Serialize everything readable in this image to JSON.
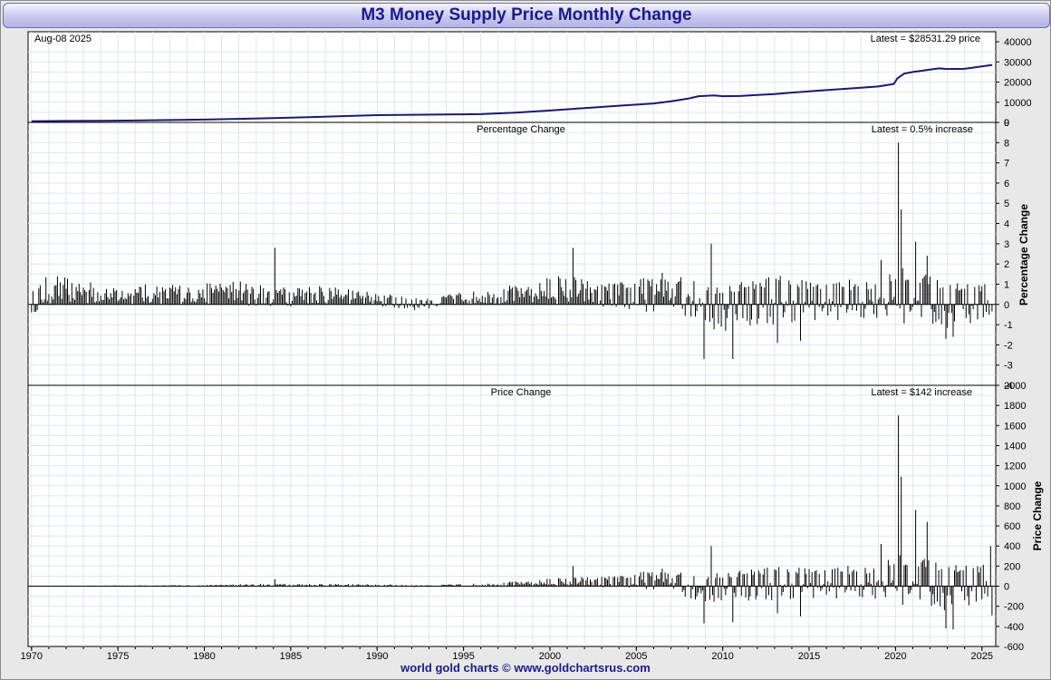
{
  "header": {
    "title": "M3 Money Supply Price Monthly Change"
  },
  "footer": {
    "text": "world gold charts © www.goldchartsrus.com"
  },
  "chart_data": [
    {
      "type": "line",
      "name": "price",
      "date_label": "Aug-08  2025",
      "latest_label": "Latest = $28531.29 price",
      "ylim": [
        0,
        45000
      ],
      "yticks": [
        0,
        10000,
        20000,
        30000,
        40000
      ],
      "xlim": [
        1969.8,
        2025.8
      ],
      "line_color": "#1a1a6e",
      "x": [
        1970,
        1972,
        1974,
        1976,
        1978,
        1980,
        1982,
        1984,
        1986,
        1988,
        1990,
        1992,
        1994,
        1996,
        1998,
        2000,
        2002,
        2004,
        2006,
        2007,
        2008,
        2008.6,
        2009.5,
        2010,
        2011,
        2012,
        2013,
        2014,
        2016,
        2018,
        2019,
        2019.9,
        2020.1,
        2020.5,
        2021,
        2022,
        2022.5,
        2023,
        2024,
        2025,
        2025.6
      ],
      "y": [
        600,
        700,
        800,
        950,
        1150,
        1400,
        1750,
        2100,
        2600,
        3100,
        3600,
        3800,
        3950,
        4100,
        4800,
        5900,
        7100,
        8300,
        9400,
        10500,
        11800,
        13000,
        13400,
        13000,
        13100,
        13600,
        14100,
        14800,
        16000,
        17200,
        17800,
        19100,
        21800,
        24200,
        25000,
        26200,
        26800,
        26500,
        26600,
        27800,
        28531
      ]
    },
    {
      "type": "bar",
      "name": "percentage",
      "subtitle": "Percentage Change",
      "latest_label": "Latest = 0.5% increase",
      "ylabel": "Percentage Change",
      "ylim": [
        -4,
        9
      ],
      "yticks": [
        -4,
        -3,
        -2,
        -1,
        0,
        1,
        2,
        3,
        4,
        5,
        6,
        7,
        8,
        9
      ],
      "xlim": [
        1969.8,
        2025.8
      ],
      "envelope": [
        {
          "year": 1970,
          "hi": 0.6,
          "lo": -0.5
        },
        {
          "year": 1971,
          "hi": 1.5,
          "lo": 0
        },
        {
          "year": 1973,
          "hi": 1.2,
          "lo": 0
        },
        {
          "year": 1975,
          "hi": 0.8,
          "lo": 0
        },
        {
          "year": 1976,
          "hi": 1.0,
          "lo": 0
        },
        {
          "year": 1979,
          "hi": 1.0,
          "lo": 0
        },
        {
          "year": 1982,
          "hi": 1.2,
          "lo": 0
        },
        {
          "year": 1984,
          "hi": 1.0,
          "lo": -0.2
        },
        {
          "year": 1986,
          "hi": 1.1,
          "lo": 0
        },
        {
          "year": 1988,
          "hi": 0.8,
          "lo": 0
        },
        {
          "year": 1990,
          "hi": 0.6,
          "lo": -0.1
        },
        {
          "year": 1991.5,
          "hi": 0.4,
          "lo": -0.3
        },
        {
          "year": 1993,
          "hi": 0.3,
          "lo": -0.3
        },
        {
          "year": 1995,
          "hi": 0.7,
          "lo": 0
        },
        {
          "year": 1997,
          "hi": 0.9,
          "lo": 0
        },
        {
          "year": 1999,
          "hi": 1.2,
          "lo": 0
        },
        {
          "year": 2001,
          "hi": 1.5,
          "lo": 0
        },
        {
          "year": 2003,
          "hi": 1.0,
          "lo": -0.1
        },
        {
          "year": 2005,
          "hi": 1.2,
          "lo": -0.4
        },
        {
          "year": 2007,
          "hi": 1.8,
          "lo": -0.3
        },
        {
          "year": 2008.5,
          "hi": 1.6,
          "lo": -0.8
        },
        {
          "year": 2009.5,
          "hi": 0.8,
          "lo": -1.5
        },
        {
          "year": 2011,
          "hi": 1.2,
          "lo": -1.2
        },
        {
          "year": 2013,
          "hi": 1.5,
          "lo": -1.0
        },
        {
          "year": 2015,
          "hi": 1.2,
          "lo": -0.8
        },
        {
          "year": 2017,
          "hi": 1.2,
          "lo": -0.8
        },
        {
          "year": 2019,
          "hi": 1.4,
          "lo": -0.8
        },
        {
          "year": 2021,
          "hi": 2.0,
          "lo": -1.0
        },
        {
          "year": 2023,
          "hi": 1.0,
          "lo": -1.2
        },
        {
          "year": 2025.6,
          "hi": 1.2,
          "lo": -0.8
        }
      ],
      "spikes": [
        {
          "x": 1984.1,
          "y": 2.8
        },
        {
          "x": 2001.3,
          "y": 2.8
        },
        {
          "x": 2008.9,
          "y": -2.7
        },
        {
          "x": 2009.3,
          "y": 3.0
        },
        {
          "x": 2010.2,
          "y": -1.3
        },
        {
          "x": 2010.6,
          "y": -2.7
        },
        {
          "x": 2013.2,
          "y": -1.9
        },
        {
          "x": 2014.5,
          "y": -1.8
        },
        {
          "x": 2019.2,
          "y": 2.2
        },
        {
          "x": 2020.2,
          "y": 8.0
        },
        {
          "x": 2020.35,
          "y": 4.7
        },
        {
          "x": 2021.2,
          "y": 3.1
        },
        {
          "x": 2021.8,
          "y": 2.4
        },
        {
          "x": 2022.9,
          "y": -1.7
        },
        {
          "x": 2023.3,
          "y": -1.6
        }
      ]
    },
    {
      "type": "bar",
      "name": "price_change",
      "subtitle": "Price Change",
      "latest_label": "Latest = $142 increase",
      "ylabel": "Price Change",
      "ylim": [
        -600,
        2000
      ],
      "yticks": [
        -600,
        -400,
        -200,
        0,
        200,
        400,
        600,
        800,
        1000,
        1200,
        1400,
        1600,
        1800,
        2000
      ],
      "xlim": [
        1969.8,
        2025.8
      ],
      "xticks": [
        1970,
        1975,
        1980,
        1985,
        1990,
        1995,
        2000,
        2005,
        2010,
        2015,
        2020,
        2025
      ],
      "envelope": [
        {
          "year": 1970,
          "hi": 5,
          "lo": -4
        },
        {
          "year": 1980,
          "hi": 12,
          "lo": 0
        },
        {
          "year": 1984,
          "hi": 30,
          "lo": -5
        },
        {
          "year": 1990,
          "hi": 20,
          "lo": -5
        },
        {
          "year": 1993,
          "hi": 12,
          "lo": -12
        },
        {
          "year": 1997,
          "hi": 40,
          "lo": 0
        },
        {
          "year": 2001,
          "hi": 90,
          "lo": 0
        },
        {
          "year": 2004,
          "hi": 100,
          "lo": -20
        },
        {
          "year": 2007,
          "hi": 200,
          "lo": -40
        },
        {
          "year": 2009,
          "hi": 110,
          "lo": -200
        },
        {
          "year": 2012,
          "hi": 200,
          "lo": -150
        },
        {
          "year": 2015,
          "hi": 190,
          "lo": -120
        },
        {
          "year": 2018,
          "hi": 210,
          "lo": -130
        },
        {
          "year": 2021,
          "hi": 350,
          "lo": -200
        },
        {
          "year": 2023,
          "hi": 200,
          "lo": -250
        },
        {
          "year": 2025.6,
          "hi": 260,
          "lo": -160
        }
      ],
      "spikes": [
        {
          "x": 1984.1,
          "y": 70
        },
        {
          "x": 2001.3,
          "y": 200
        },
        {
          "x": 2008.9,
          "y": -370
        },
        {
          "x": 2009.3,
          "y": 400
        },
        {
          "x": 2010.6,
          "y": -360
        },
        {
          "x": 2013.2,
          "y": -270
        },
        {
          "x": 2014.5,
          "y": -300
        },
        {
          "x": 2019.2,
          "y": 420
        },
        {
          "x": 2020.2,
          "y": 1700
        },
        {
          "x": 2020.35,
          "y": 1090
        },
        {
          "x": 2021.2,
          "y": 760
        },
        {
          "x": 2021.8,
          "y": 640
        },
        {
          "x": 2022.9,
          "y": -420
        },
        {
          "x": 2023.3,
          "y": -430
        },
        {
          "x": 2025.5,
          "y": 400
        },
        {
          "x": 2025.6,
          "y": -290
        }
      ]
    }
  ],
  "colors": {
    "frame_bg": "#e8e8e8",
    "plot_bg": "#ffffff",
    "grid": "#dde7ee",
    "title_text": "#1a1a8c",
    "price_line": "#1a1a6e"
  }
}
